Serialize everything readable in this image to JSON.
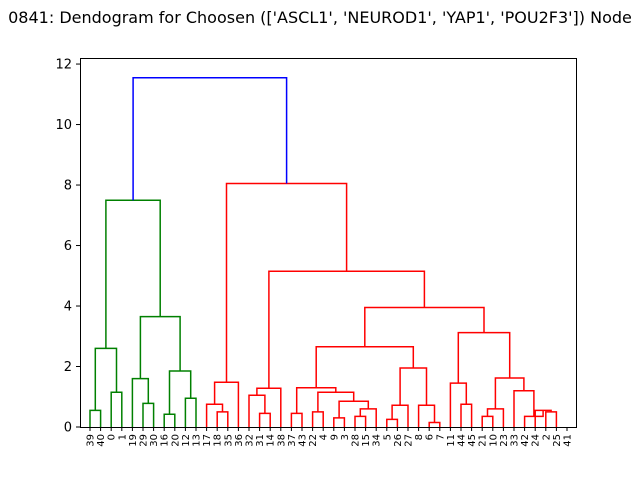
{
  "chart_data": {
    "type": "dendrogram",
    "title": "0841: Dendogram for Choosen (['ASCL1', 'NEUROD1', 'YAP1', 'POU2F3']) Node",
    "xlabel": "",
    "ylabel": "",
    "ylim": [
      0,
      12.2
    ],
    "yticks": [
      0,
      2,
      4,
      6,
      8,
      10,
      12
    ],
    "grid": false,
    "leaf_labels": [
      "39",
      "40",
      "0",
      "1",
      "19",
      "29",
      "30",
      "16",
      "20",
      "12",
      "13",
      "17",
      "18",
      "35",
      "36",
      "32",
      "31",
      "14",
      "38",
      "37",
      "43",
      "22",
      "4",
      "9",
      "3",
      "28",
      "15",
      "34",
      "5",
      "26",
      "27",
      "8",
      "6",
      "7",
      "11",
      "44",
      "45",
      "21",
      "10",
      "23",
      "33",
      "42",
      "24",
      "2",
      "25",
      "41"
    ],
    "colors": {
      "left_cluster": "#008000",
      "right_cluster": "#ff0000",
      "root": "#0000ff"
    },
    "merges": [
      {
        "id": "A1",
        "left": "L0",
        "right": "L1",
        "height": 0.55,
        "color": "#008000"
      },
      {
        "id": "A2",
        "left": "L2",
        "right": "L3",
        "height": 1.15,
        "color": "#008000"
      },
      {
        "id": "A3",
        "left": "A1",
        "right": "A2",
        "height": 2.6,
        "color": "#008000"
      },
      {
        "id": "A4",
        "left": "L5",
        "right": "L6",
        "height": 0.78,
        "color": "#008000"
      },
      {
        "id": "A5",
        "left": "L4",
        "right": "A4",
        "height": 1.6,
        "color": "#008000"
      },
      {
        "id": "A6",
        "left": "L7",
        "right": "L8",
        "height": 0.42,
        "color": "#008000"
      },
      {
        "id": "A7",
        "left": "L9",
        "right": "L10",
        "height": 0.95,
        "color": "#008000"
      },
      {
        "id": "A8",
        "left": "A6",
        "right": "A7",
        "height": 1.85,
        "color": "#008000"
      },
      {
        "id": "A9",
        "left": "A5",
        "right": "A8",
        "height": 3.65,
        "color": "#008000"
      },
      {
        "id": "A10",
        "left": "A3",
        "right": "A9",
        "height": 7.5,
        "color": "#008000"
      },
      {
        "id": "B1",
        "left": "L12",
        "right": "L13",
        "height": 0.5,
        "color": "#ff0000"
      },
      {
        "id": "B2",
        "left": "L11",
        "right": "B1",
        "height": 0.75,
        "color": "#ff0000"
      },
      {
        "id": "B3",
        "left": "B2",
        "right": "L14",
        "height": 1.48,
        "color": "#ff0000"
      },
      {
        "id": "B4",
        "left": "L16",
        "right": "L17",
        "height": 0.45,
        "color": "#ff0000"
      },
      {
        "id": "B5",
        "left": "L15",
        "right": "B4",
        "height": 1.05,
        "color": "#ff0000"
      },
      {
        "id": "B6",
        "left": "B5",
        "right": "L18",
        "height": 1.28,
        "color": "#ff0000"
      },
      {
        "id": "B7",
        "left": "L19",
        "right": "L20",
        "height": 0.45,
        "color": "#ff0000"
      },
      {
        "id": "B8",
        "left": "L21",
        "right": "L22",
        "height": 0.5,
        "color": "#ff0000"
      },
      {
        "id": "B9",
        "left": "L23",
        "right": "L24",
        "height": 0.3,
        "color": "#ff0000"
      },
      {
        "id": "B10",
        "left": "L25",
        "right": "L26",
        "height": 0.35,
        "color": "#ff0000"
      },
      {
        "id": "B11",
        "left": "B10",
        "right": "L27",
        "height": 0.6,
        "color": "#ff0000"
      },
      {
        "id": "B12",
        "left": "B9",
        "right": "B11",
        "height": 0.85,
        "color": "#ff0000"
      },
      {
        "id": "B13",
        "left": "B8",
        "right": "B12",
        "height": 1.15,
        "color": "#ff0000"
      },
      {
        "id": "B14",
        "left": "B7",
        "right": "B13",
        "height": 1.3,
        "color": "#ff0000"
      },
      {
        "id": "B15",
        "left": "L28",
        "right": "L29",
        "height": 0.25,
        "color": "#ff0000"
      },
      {
        "id": "B16",
        "left": "B15",
        "right": "L30",
        "height": 0.72,
        "color": "#ff0000"
      },
      {
        "id": "B17",
        "left": "L32",
        "right": "L33",
        "height": 0.15,
        "color": "#ff0000"
      },
      {
        "id": "B18",
        "left": "L31",
        "right": "B17",
        "height": 0.72,
        "color": "#ff0000"
      },
      {
        "id": "B19",
        "left": "B16",
        "right": "B18",
        "height": 1.95,
        "color": "#ff0000"
      },
      {
        "id": "B20",
        "left": "B14",
        "right": "B19",
        "height": 2.65,
        "color": "#ff0000"
      },
      {
        "id": "B21",
        "left": "L35",
        "right": "L36",
        "height": 0.75,
        "color": "#ff0000"
      },
      {
        "id": "B22",
        "left": "L34",
        "right": "B21",
        "height": 1.45,
        "color": "#ff0000"
      },
      {
        "id": "B23",
        "left": "L37",
        "right": "L38",
        "height": 0.35,
        "color": "#ff0000"
      },
      {
        "id": "B24",
        "left": "B23",
        "right": "L39",
        "height": 0.6,
        "color": "#ff0000"
      },
      {
        "id": "B25",
        "left": "L43",
        "right": "L44",
        "height": 0.5,
        "color": "#ff0000"
      },
      {
        "id": "B26",
        "left": "L42",
        "right": "B25",
        "height": 0.55,
        "color": "#ff0000"
      },
      {
        "id": "B27",
        "left": "L41",
        "right": "B26",
        "height": 0.35,
        "color": "#ff0000"
      },
      {
        "id": "B28",
        "left": "L40",
        "right": "B27",
        "height": 1.2,
        "color": "#ff0000"
      },
      {
        "id": "B29",
        "left": "B24",
        "right": "B28",
        "height": 1.62,
        "color": "#ff0000"
      },
      {
        "id": "B30",
        "left": "B22",
        "right": "B29",
        "height": 3.12,
        "color": "#ff0000"
      },
      {
        "id": "B31",
        "left": "B20",
        "right": "B30",
        "height": 3.95,
        "color": "#ff0000"
      },
      {
        "id": "B32",
        "left": "B6",
        "right": "B31",
        "height": 5.15,
        "color": "#ff0000"
      },
      {
        "id": "B33",
        "left": "B3",
        "right": "B32",
        "height": 8.05,
        "color": "#ff0000"
      },
      {
        "id": "ROOT",
        "left": "A10",
        "right": "B33",
        "height": 11.55,
        "color": "#0000ff"
      }
    ]
  }
}
